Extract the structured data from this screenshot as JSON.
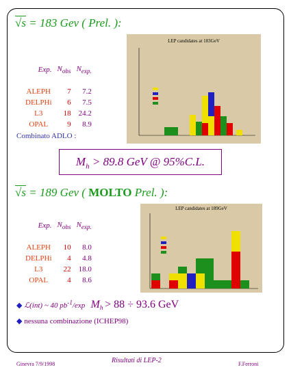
{
  "sections": [
    {
      "sqrt_s": "√s",
      "energy": "= 183 Gev",
      "note": [
        "( Prel. ):"
      ],
      "plot_title": "LEP candidates at 183GeV",
      "table": {
        "header": [
          {
            "text": "Exp."
          },
          {
            "text": "N",
            "sub": "obs"
          },
          {
            "text": "N",
            "sub": "exp."
          }
        ],
        "rows": [
          [
            "ALEPH",
            "7",
            "7.2"
          ],
          [
            "DELPHi",
            "6",
            "7.5"
          ],
          [
            "L3",
            "18",
            "24.2"
          ],
          [
            "OPAL",
            "9",
            "8.9"
          ]
        ]
      },
      "combined": "Combinato ADLO :",
      "limit": {
        "symbol": "M",
        "sub": "h",
        "text": "> 89.8 GeV @ 95%C.L."
      }
    },
    {
      "sqrt_s": "√s",
      "energy": "= 189 Gev",
      "note": [
        "(",
        "MOLTO",
        "Prel. ):"
      ],
      "plot_title": "LEP candidates at 189GeV",
      "table": {
        "header": [
          {
            "text": "Exp."
          },
          {
            "text": "N",
            "sub": "obs"
          },
          {
            "text": "N",
            "sub": "exp."
          }
        ],
        "rows": [
          [
            "ALEPH",
            "10",
            "8.0"
          ],
          [
            "DELPHi",
            "4",
            "4.8"
          ],
          [
            "L3",
            "22",
            "18.0"
          ],
          [
            "OPAL",
            "4",
            "8.6"
          ]
        ]
      }
    }
  ],
  "bullets": [
    {
      "lumi": "ℒ(int) ~ 40 pb",
      "sup": "-1",
      "per": "/exp",
      "symbol": "M",
      "sub": "h",
      "text": "> 88 ÷ 93.6 GeV"
    },
    {
      "text": "nessuna combinazione (ICHEP98)"
    }
  ],
  "footer": {
    "left": "Ginevra 7/9/1998",
    "center": "Risultati di LEP-2",
    "right": "F.Ferroni"
  }
}
